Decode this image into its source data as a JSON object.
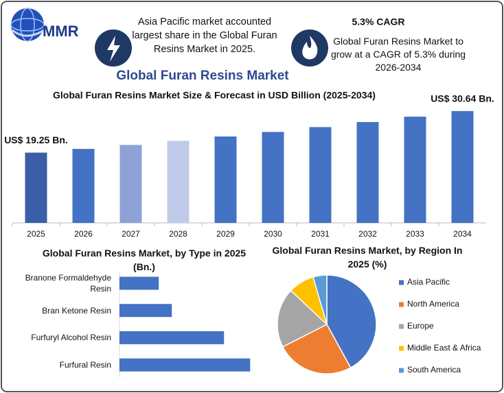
{
  "header": {
    "logo": "MMR",
    "fact1": "Asia Pacific market accounted largest share in the Global Furan Resins Market in 2025.",
    "fact2_title": "5.3% CAGR",
    "fact2": "Global Furan Resins Market to grow at a CAGR of 5.3% during 2026-2034",
    "title": "Global Furan Resins Market"
  },
  "chart_data": [
    {
      "type": "bar",
      "title": "Global Furan Resins Market Size & Forecast in USD Billion (2025-2034)",
      "categories": [
        "2025",
        "2026",
        "2027",
        "2028",
        "2029",
        "2030",
        "2031",
        "2032",
        "2033",
        "2034"
      ],
      "values": [
        19.25,
        20.27,
        21.35,
        22.48,
        23.67,
        24.92,
        26.24,
        27.63,
        29.1,
        30.64
      ],
      "value_labels": [
        "US$ 19.25 Bn.",
        null,
        null,
        null,
        null,
        null,
        null,
        null,
        null,
        "US$ 30.64 Bn."
      ],
      "colors": [
        "#3a5fa8",
        "#4472c4",
        "#8fa2d5",
        "#bfcbe9",
        "#4472c4",
        "#4472c4",
        "#4472c4",
        "#4472c4",
        "#4472c4",
        "#4472c4"
      ],
      "ylim": [
        0,
        31
      ]
    },
    {
      "type": "hbar",
      "title": "Global Furan Resins Market, by Type in 2025 (Bn.)",
      "categories": [
        "Branone Formaldehyde Resin",
        "Bran Ketone Resin",
        "Furfuryl Alcohol Resin",
        "Furfural Resin"
      ],
      "values": [
        2.31,
        3.08,
        6.15,
        7.69
      ],
      "color": "#4472c4",
      "xlim": [
        0,
        8
      ]
    },
    {
      "type": "pie",
      "title": "Global Furan Resins Market, by Region In 2025 (%)",
      "categories": [
        "Asia Pacific",
        "North America",
        "Europe",
        "Middle East & Africa",
        "South America"
      ],
      "values": [
        42,
        25.5,
        19.5,
        8.5,
        4.5
      ],
      "colors": [
        "#4472c4",
        "#ed7d31",
        "#a5a5a5",
        "#ffc000",
        "#5b9bd5"
      ],
      "legend": "right"
    }
  ]
}
